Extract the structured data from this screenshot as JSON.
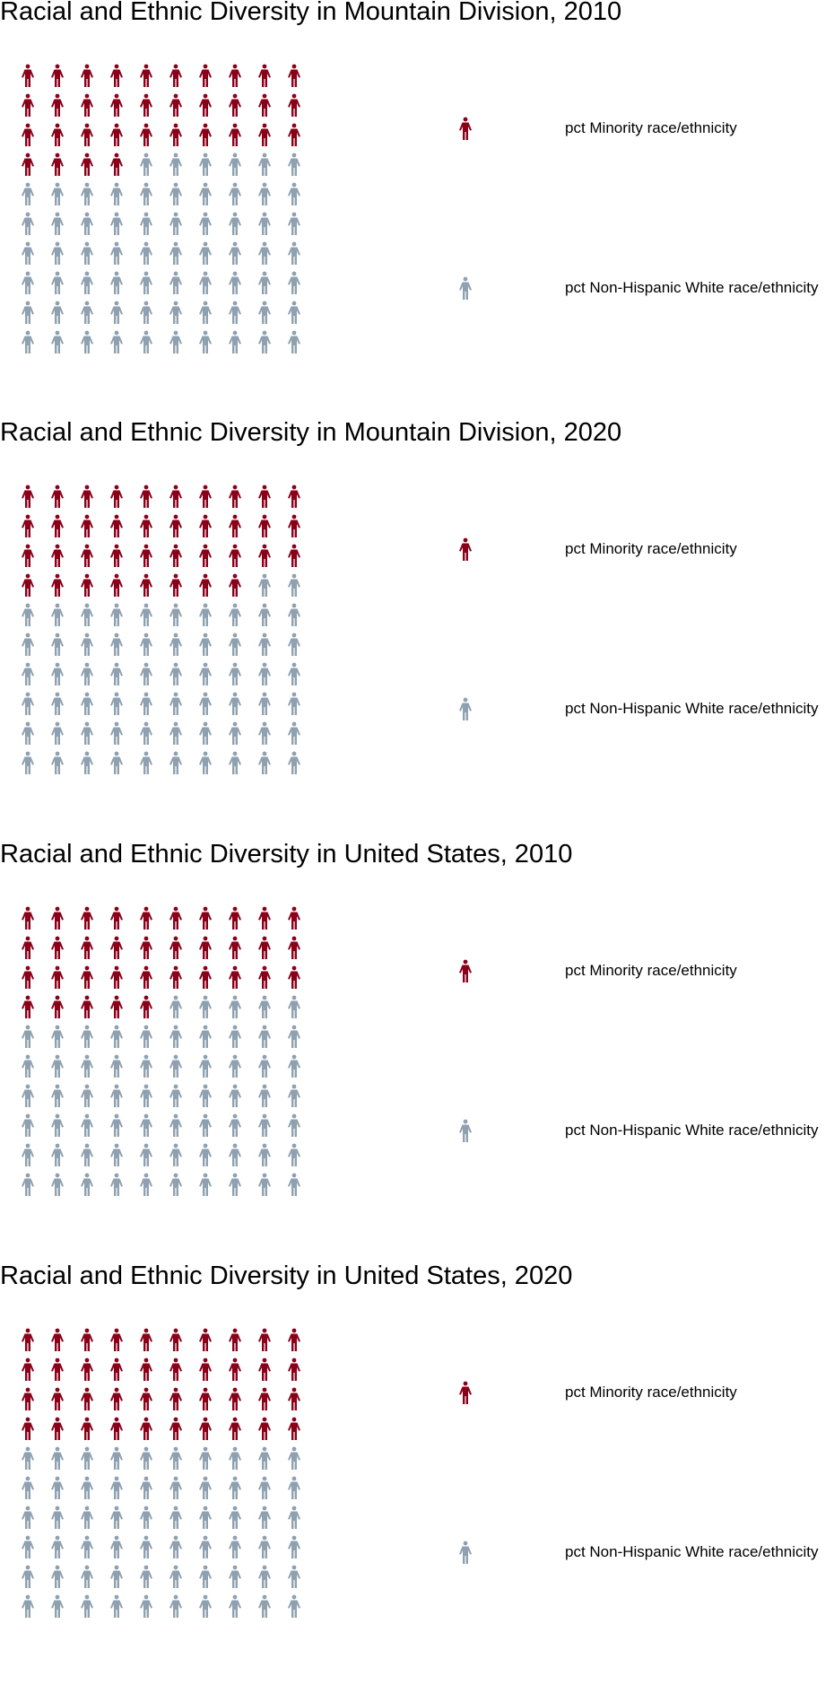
{
  "colors": {
    "minority": "#8b0019",
    "white": "#8fa1b0"
  },
  "legend": {
    "minority": "pct Minority race/ethnicity",
    "white": "pct Non-Hispanic White race/ethnicity"
  },
  "chart_data": [
    {
      "type": "waffle",
      "title": "Racial and Ethnic Diversity in Mountain Division, 2010",
      "total_icons": 100,
      "rows": 10,
      "cols": 10,
      "series": [
        {
          "name": "pct Minority race/ethnicity",
          "value": 34
        },
        {
          "name": "pct Non-Hispanic White race/ethnicity",
          "value": 66
        }
      ]
    },
    {
      "type": "waffle",
      "title": "Racial and Ethnic Diversity in Mountain Division, 2020",
      "total_icons": 100,
      "rows": 10,
      "cols": 10,
      "series": [
        {
          "name": "pct Minority race/ethnicity",
          "value": 38
        },
        {
          "name": "pct Non-Hispanic White race/ethnicity",
          "value": 62
        }
      ]
    },
    {
      "type": "waffle",
      "title": "Racial and Ethnic Diversity in United States, 2010",
      "total_icons": 100,
      "rows": 10,
      "cols": 10,
      "series": [
        {
          "name": "pct Minority race/ethnicity",
          "value": 35
        },
        {
          "name": "pct Non-Hispanic White race/ethnicity",
          "value": 65
        }
      ]
    },
    {
      "type": "waffle",
      "title": "Racial and Ethnic Diversity in United States, 2020",
      "total_icons": 100,
      "rows": 10,
      "cols": 10,
      "series": [
        {
          "name": "pct Minority race/ethnicity",
          "value": 40
        },
        {
          "name": "pct Non-Hispanic White race/ethnicity",
          "value": 60
        }
      ]
    }
  ]
}
